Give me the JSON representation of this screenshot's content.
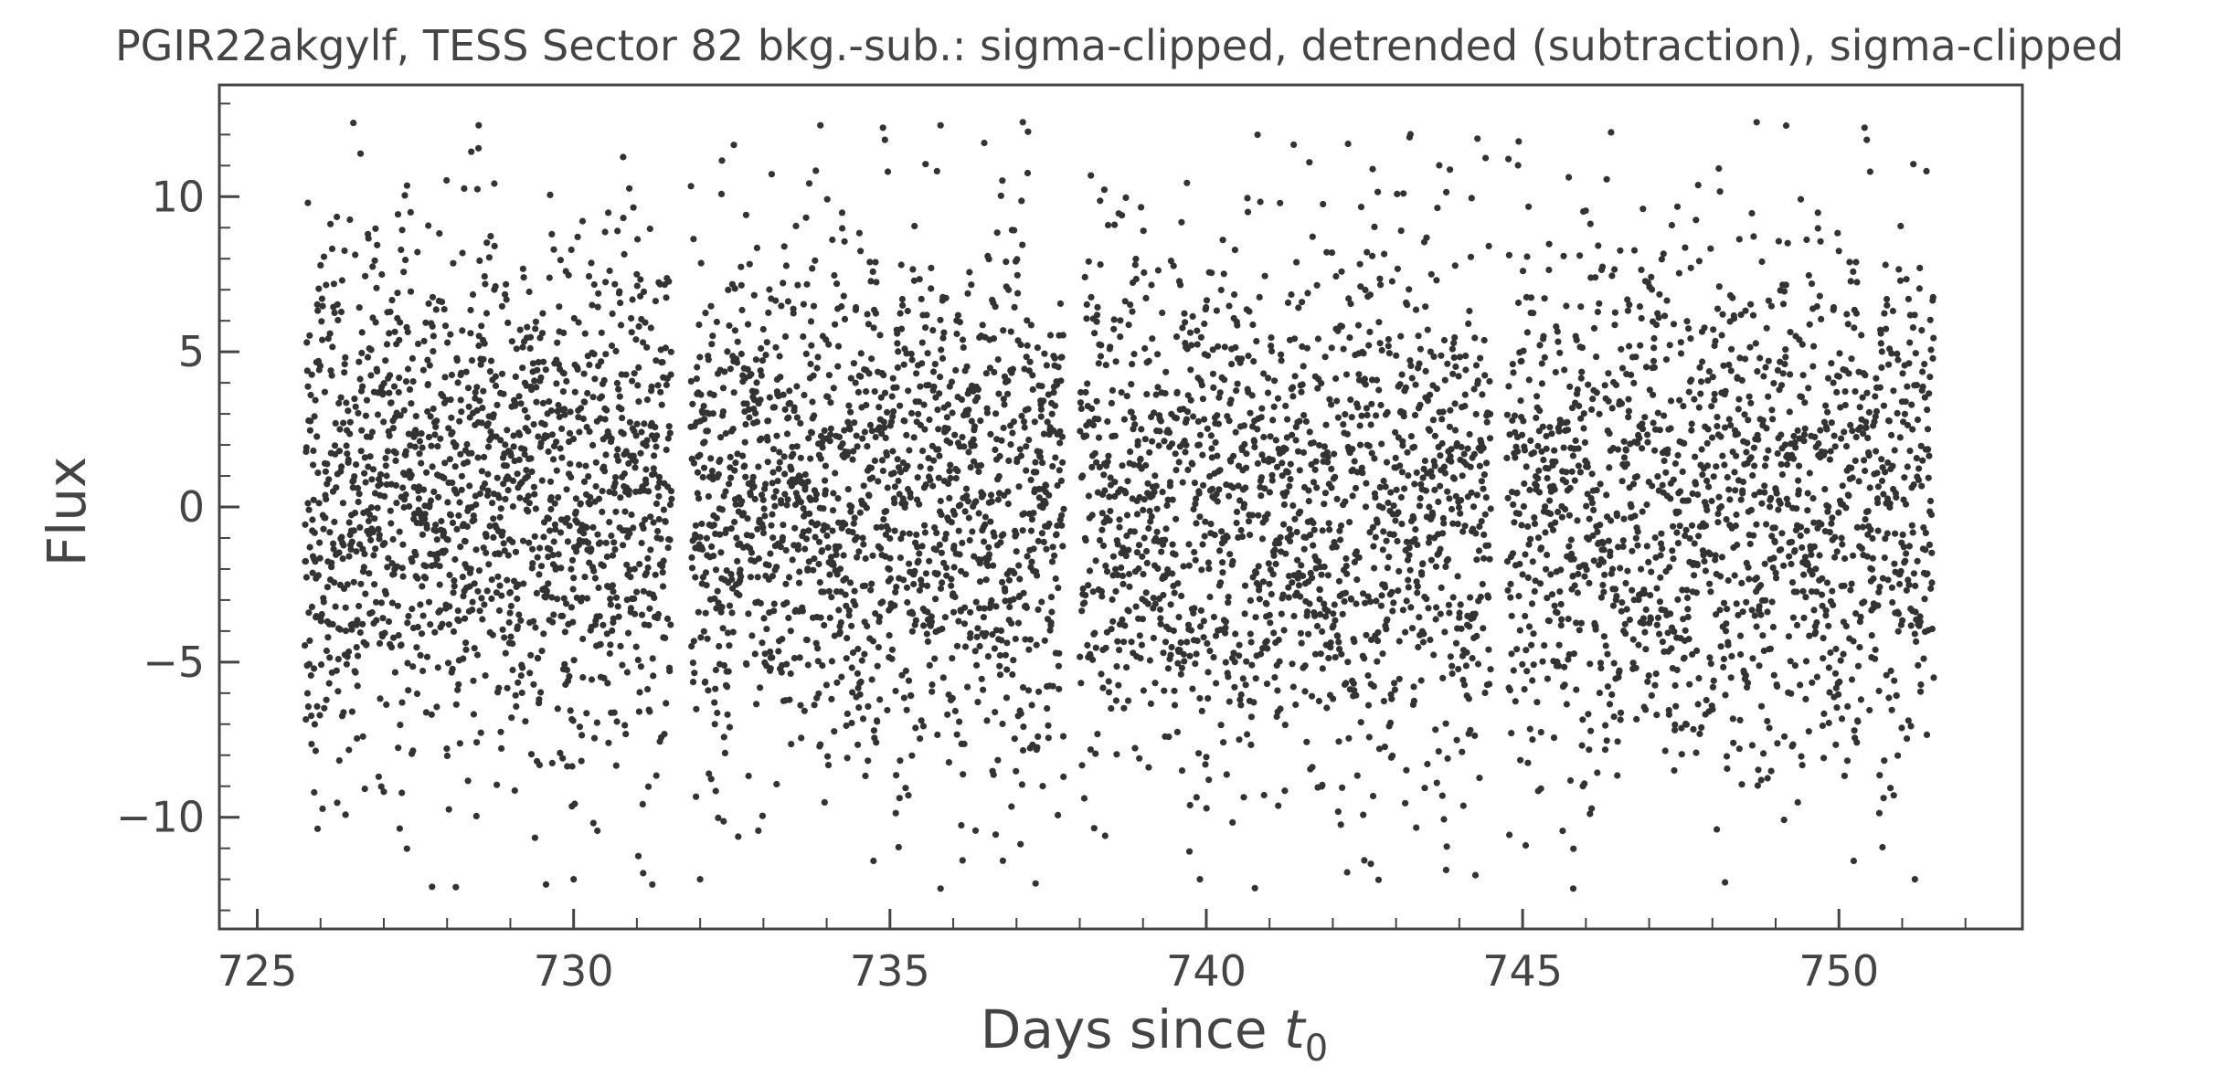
{
  "chart_data": {
    "type": "scatter",
    "title": "PGIR22akgylf, TESS Sector 82 bkg.-sub.: sigma-clipped, detrended (subtraction), sigma-clipped",
    "xlabel": "Days since t0",
    "xlabel_main": "Days since ",
    "xlabel_var": "t",
    "xlabel_sub": "0",
    "ylabel": "Flux",
    "xlim": [
      724.4,
      752.9
    ],
    "ylim": [
      -13.6,
      13.6
    ],
    "xticks": [
      725,
      730,
      735,
      740,
      745,
      750
    ],
    "xtick_labels": [
      "725",
      "730",
      "735",
      "740",
      "745",
      "750"
    ],
    "yticks": [
      -10,
      -5,
      0,
      5,
      10
    ],
    "ytick_labels": [
      "−10",
      "−5",
      "0",
      "5",
      "10"
    ],
    "grid": false,
    "legend": "none",
    "marker_color": "#333333",
    "time_segments": [
      {
        "start": 725.75,
        "end": 731.55
      },
      {
        "start": 731.85,
        "end": 737.75
      },
      {
        "start": 738.0,
        "end": 744.5
      },
      {
        "start": 744.75,
        "end": 751.5
      }
    ],
    "approx_points_per_segment": 1500,
    "flux_distribution": "approximately normal, mean 0, sigma about 4.3, sigma-clipped at about +/-12.5",
    "series": [
      {
        "name": "",
        "sample_points": [
          {
            "x": 725.8,
            "y": 9.8
          },
          {
            "x": 725.9,
            "y": -9.2
          },
          {
            "x": 728.5,
            "y": 12.3
          },
          {
            "x": 730.0,
            "y": -12.0
          },
          {
            "x": 731.1,
            "y": -11.8
          },
          {
            "x": 732.0,
            "y": -12.0
          },
          {
            "x": 733.9,
            "y": 12.3
          },
          {
            "x": 735.8,
            "y": 12.3
          },
          {
            "x": 735.8,
            "y": -12.3
          },
          {
            "x": 737.1,
            "y": 12.4
          },
          {
            "x": 739.9,
            "y": -12.0
          },
          {
            "x": 742.6,
            "y": -11.5
          },
          {
            "x": 745.8,
            "y": -12.3
          },
          {
            "x": 748.2,
            "y": -12.1
          },
          {
            "x": 748.7,
            "y": 12.4
          },
          {
            "x": 751.2,
            "y": -12.0
          }
        ]
      }
    ]
  }
}
